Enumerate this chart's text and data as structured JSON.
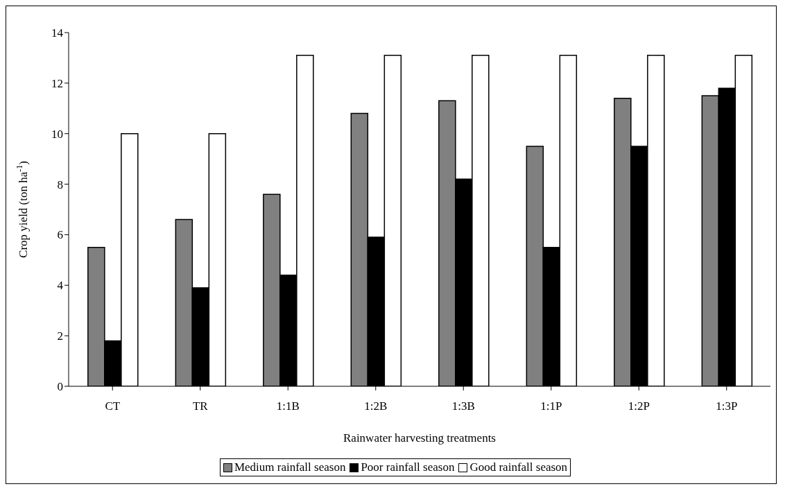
{
  "chart_data": {
    "type": "bar",
    "xlabel": "Rainwater harvesting treatments",
    "ylabel": "Crop yield (ton ha$^{-1}$)",
    "categories": [
      "CT",
      "TR",
      "1:1B",
      "1:2B",
      "1:3B",
      "1:1P",
      "1:2P",
      "1:3P"
    ],
    "series": [
      {
        "name": "Medium rainfall season",
        "color": "#808080",
        "values": [
          5.5,
          6.6,
          7.6,
          10.8,
          11.3,
          9.5,
          11.4,
          11.5
        ]
      },
      {
        "name": "Poor rainfall season",
        "color": "#000000",
        "values": [
          1.8,
          3.9,
          4.4,
          5.9,
          8.2,
          5.5,
          9.5,
          11.8
        ]
      },
      {
        "name": "Good rainfall season",
        "color": "#ffffff",
        "values": [
          10,
          10,
          13.1,
          13.1,
          13.1,
          13.1,
          13.1,
          13.1
        ]
      }
    ],
    "ylim": [
      0,
      14
    ],
    "yticks": [
      0,
      2,
      4,
      6,
      8,
      10,
      12,
      14
    ],
    "grid": false,
    "legend": "bottom"
  }
}
